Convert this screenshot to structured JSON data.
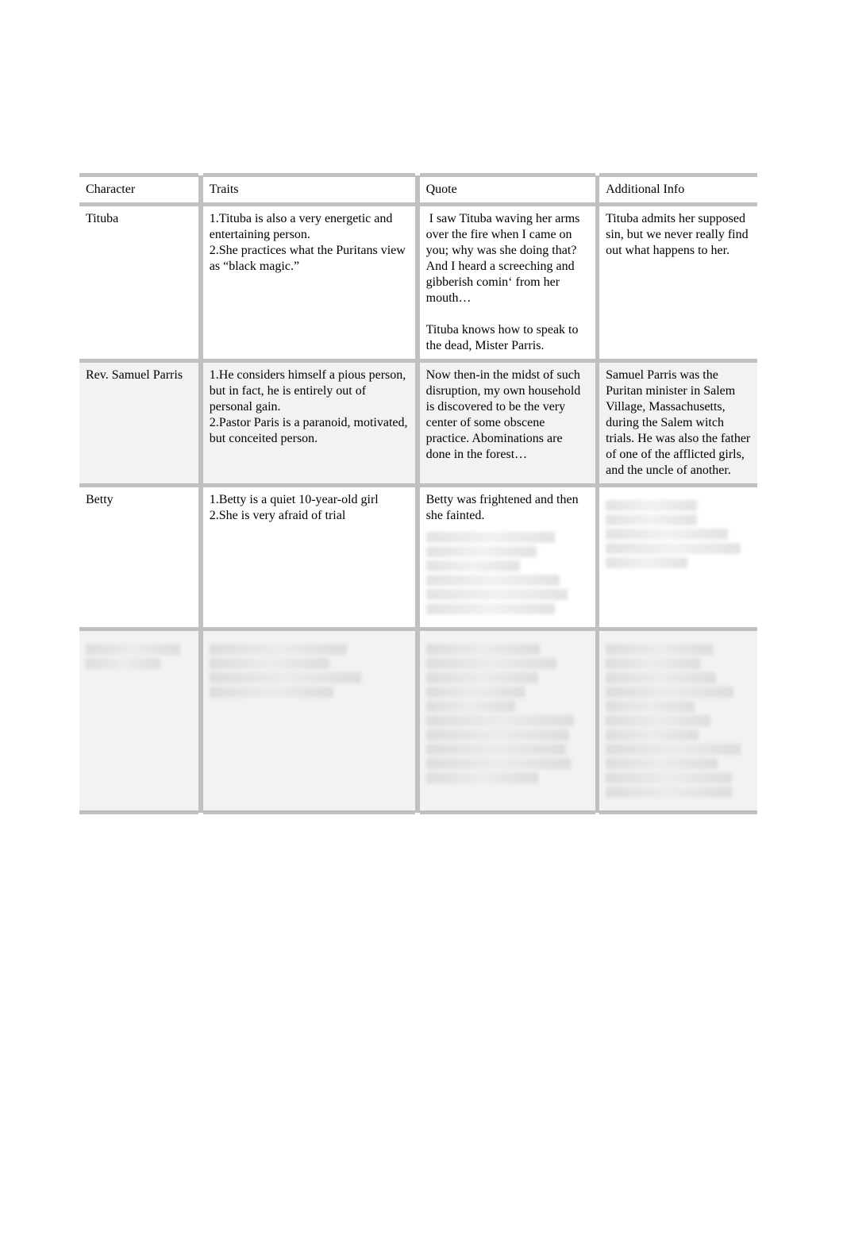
{
  "table": {
    "border_color": "#c0c0c0",
    "alt_row_bg": "#f2f2f2",
    "headers": {
      "character": "Character",
      "traits": "Traits",
      "quote": "Quote",
      "info": "Additional Info"
    },
    "rows": [
      {
        "character": "Tituba",
        "traits": "1.Tituba is also a very energetic and entertaining person.\n2.She practices what the Puritans view as “black magic.”",
        "quote": " I saw Tituba waving her arms over the fire when I came on you; why was she doing that? And I heard a screeching and gibberish comin‘ from her mouth…\n\nTituba knows how to speak to the dead, Mister Parris.",
        "info": "Tituba admits her supposed sin, but we never really find out what happens to her."
      },
      {
        "character": "Rev. Samuel Parris",
        "traits": "1.He considers himself a pious person, but in fact, he is entirely out of personal gain.\n2.Pastor Paris is a paranoid, motivated, but conceited person.",
        "quote": "Now then-in the midst of such disruption, my own household is discovered to be the very center of some obscene practice. Abominations are done in the forest…",
        "info": "Samuel Parris was the Puritan minister in Salem Village, Massachusetts, during the Salem witch trials. He was also the father of one of the afflicted girls, and the uncle of another."
      },
      {
        "character": "Betty",
        "traits": "1.Betty is a quiet 10-year-old girl\n2.She is very afraid of trial",
        "quote": "Betty was frightened and then she fainted.",
        "info": "",
        "quote_blur": 6,
        "info_blur": 5
      },
      {
        "character": "",
        "traits": "",
        "quote": "",
        "info": "",
        "character_blur": 2,
        "traits_blur": 4,
        "quote_blur": 10,
        "info_blur": 11
      }
    ]
  },
  "style": {
    "font_family": "Times New Roman",
    "font_size_pt": 12,
    "text_color": "#000000",
    "bg_color": "#ffffff"
  }
}
